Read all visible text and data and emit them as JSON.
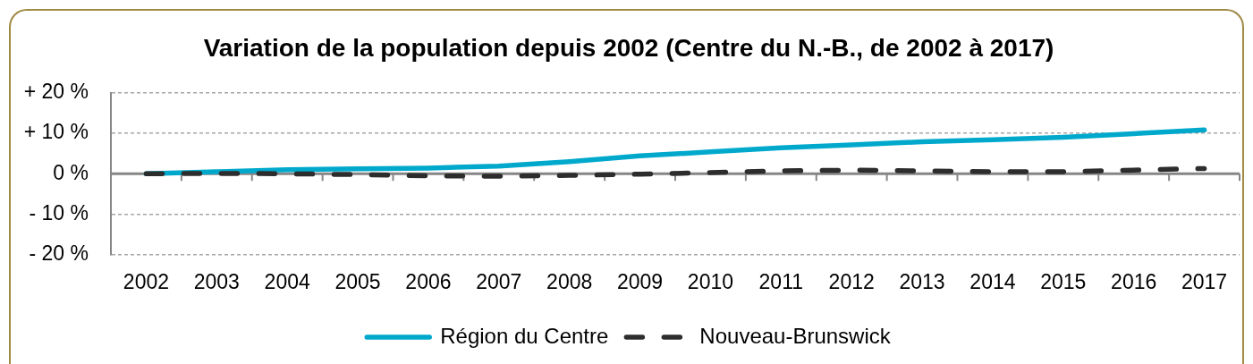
{
  "chart_data": {
    "type": "line",
    "title": "Variation de la population depuis 2002 (Centre du N.-B., de 2002 à 2017)",
    "categories": [
      "2002",
      "2003",
      "2004",
      "2005",
      "2006",
      "2007",
      "2008",
      "2009",
      "2010",
      "2011",
      "2012",
      "2013",
      "2014",
      "2015",
      "2016",
      "2017"
    ],
    "series": [
      {
        "name": "Région du Centre",
        "color": "#00a9cc",
        "line_style": "solid",
        "values": [
          0,
          0.5,
          1.0,
          1.2,
          1.4,
          1.9,
          3.0,
          4.4,
          5.4,
          6.4,
          7.1,
          7.9,
          8.4,
          9.0,
          9.9,
          10.8
        ]
      },
      {
        "name": "Nouveau-Brunswick",
        "color": "#2d2d2d",
        "line_style": "dashed",
        "values": [
          0,
          0.1,
          0,
          -0.2,
          -0.5,
          -0.6,
          -0.4,
          -0.1,
          0.3,
          0.7,
          0.9,
          0.7,
          0.5,
          0.5,
          0.9,
          1.3
        ]
      }
    ],
    "ylim": [
      -20,
      20
    ],
    "yticks": [
      {
        "value": -20,
        "label": "- 20 %"
      },
      {
        "value": -10,
        "label": "- 10 %"
      },
      {
        "value": 0,
        "label": "0 %"
      },
      {
        "value": 10,
        "label": "+ 10 %"
      },
      {
        "value": 20,
        "label": "+ 20 %"
      }
    ],
    "grid": "y",
    "legend": "bottom",
    "marker": "none"
  }
}
